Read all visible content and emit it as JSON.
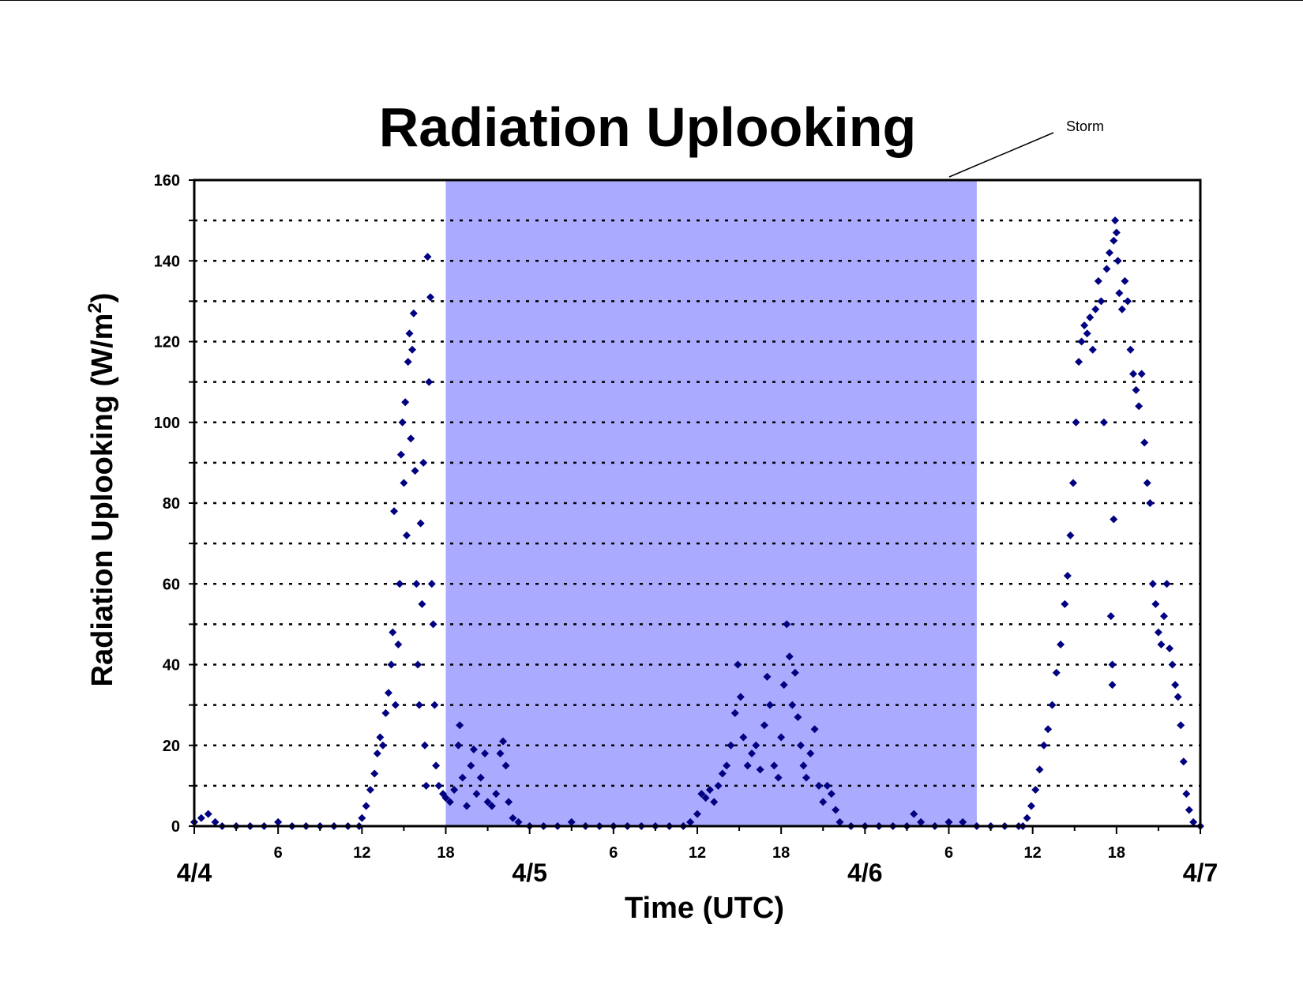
{
  "chart_data": {
    "type": "scatter",
    "title": "Radiation Uplooking",
    "xlabel": "Time (UTC)",
    "ylabel_main": "Radiation Uplooking (W/m",
    "ylabel_sup": "2",
    "ylabel_close": ")",
    "xlim": [
      0,
      72
    ],
    "ylim": [
      0,
      160
    ],
    "grid": "dotted horizontal lines every 10",
    "legend": "none",
    "marker_color": "#000080",
    "shade_color": "#AAAAFF",
    "yticks": [
      "0",
      "20",
      "40",
      "60",
      "80",
      "100",
      "120",
      "140",
      "160"
    ],
    "x_hour_ticks": [
      {
        "x": 6,
        "label": "6"
      },
      {
        "x": 12,
        "label": "12"
      },
      {
        "x": 18,
        "label": "18"
      },
      {
        "x": 30,
        "label": "6"
      },
      {
        "x": 36,
        "label": "12"
      },
      {
        "x": 42,
        "label": "18"
      },
      {
        "x": 54,
        "label": "6"
      },
      {
        "x": 60,
        "label": "12"
      },
      {
        "x": 66,
        "label": "18"
      }
    ],
    "x_day_labels": [
      {
        "x": 0,
        "label": "4/4"
      },
      {
        "x": 24,
        "label": "4/5"
      },
      {
        "x": 48,
        "label": "4/6"
      },
      {
        "x": 72,
        "label": "4/7"
      }
    ],
    "shaded_span": {
      "label": "Storm",
      "x_start": 18,
      "x_end": 56
    },
    "series": [
      {
        "values": [
          [
            0.0,
            1
          ],
          [
            0.5,
            2
          ],
          [
            1.0,
            3
          ],
          [
            1.5,
            1
          ],
          [
            2.0,
            0
          ],
          [
            3,
            0
          ],
          [
            4,
            0
          ],
          [
            5,
            0
          ],
          [
            6,
            1
          ],
          [
            7,
            0
          ],
          [
            8,
            0
          ],
          [
            9,
            0
          ],
          [
            10,
            0
          ],
          [
            11,
            0
          ],
          [
            11.8,
            0
          ],
          [
            12.0,
            2
          ],
          [
            12.3,
            5
          ],
          [
            12.6,
            9
          ],
          [
            12.9,
            13
          ],
          [
            13.1,
            18
          ],
          [
            13.3,
            22
          ],
          [
            13.5,
            20
          ],
          [
            13.7,
            28
          ],
          [
            13.9,
            33
          ],
          [
            14.1,
            40
          ],
          [
            14.2,
            48
          ],
          [
            14.3,
            78
          ],
          [
            14.4,
            30
          ],
          [
            14.6,
            45
          ],
          [
            14.7,
            60
          ],
          [
            14.8,
            92
          ],
          [
            14.9,
            100
          ],
          [
            15.0,
            85
          ],
          [
            15.1,
            105
          ],
          [
            15.2,
            72
          ],
          [
            15.3,
            115
          ],
          [
            15.4,
            122
          ],
          [
            15.5,
            96
          ],
          [
            15.6,
            118
          ],
          [
            15.7,
            127
          ],
          [
            15.8,
            88
          ],
          [
            15.9,
            60
          ],
          [
            16.0,
            40
          ],
          [
            16.1,
            30
          ],
          [
            16.2,
            75
          ],
          [
            16.3,
            55
          ],
          [
            16.4,
            90
          ],
          [
            16.5,
            20
          ],
          [
            16.6,
            10
          ],
          [
            16.7,
            141
          ],
          [
            16.8,
            110
          ],
          [
            16.9,
            131
          ],
          [
            17.0,
            60
          ],
          [
            17.1,
            50
          ],
          [
            17.2,
            30
          ],
          [
            17.3,
            15
          ],
          [
            17.5,
            10
          ],
          [
            17.8,
            8
          ],
          [
            18.0,
            7
          ],
          [
            18.3,
            6
          ],
          [
            18.6,
            9
          ],
          [
            18.9,
            20
          ],
          [
            19.0,
            25
          ],
          [
            19.2,
            12
          ],
          [
            19.5,
            5
          ],
          [
            19.8,
            15
          ],
          [
            20.0,
            19
          ],
          [
            20.2,
            8
          ],
          [
            20.5,
            12
          ],
          [
            20.8,
            18
          ],
          [
            21.0,
            6
          ],
          [
            21.3,
            5
          ],
          [
            21.6,
            8
          ],
          [
            21.9,
            18
          ],
          [
            22.1,
            21
          ],
          [
            22.3,
            15
          ],
          [
            22.5,
            6
          ],
          [
            22.8,
            2
          ],
          [
            23.2,
            1
          ],
          [
            24,
            0
          ],
          [
            25,
            0
          ],
          [
            26,
            0
          ],
          [
            27,
            1
          ],
          [
            28,
            0
          ],
          [
            29,
            0
          ],
          [
            30,
            0
          ],
          [
            31,
            0
          ],
          [
            32,
            0
          ],
          [
            33,
            0
          ],
          [
            34,
            0
          ],
          [
            35,
            0
          ],
          [
            35.5,
            1
          ],
          [
            36.0,
            3
          ],
          [
            36.3,
            8
          ],
          [
            36.6,
            7
          ],
          [
            36.9,
            9
          ],
          [
            37.2,
            6
          ],
          [
            37.5,
            10
          ],
          [
            37.8,
            13
          ],
          [
            38.1,
            15
          ],
          [
            38.4,
            20
          ],
          [
            38.7,
            28
          ],
          [
            38.9,
            40
          ],
          [
            39.1,
            32
          ],
          [
            39.3,
            22
          ],
          [
            39.6,
            15
          ],
          [
            39.9,
            18
          ],
          [
            40.2,
            20
          ],
          [
            40.5,
            14
          ],
          [
            40.8,
            25
          ],
          [
            41.0,
            37
          ],
          [
            41.2,
            30
          ],
          [
            41.5,
            15
          ],
          [
            41.8,
            12
          ],
          [
            42.0,
            22
          ],
          [
            42.2,
            35
          ],
          [
            42.4,
            50
          ],
          [
            42.6,
            42
          ],
          [
            42.8,
            30
          ],
          [
            43.0,
            38
          ],
          [
            43.2,
            27
          ],
          [
            43.4,
            20
          ],
          [
            43.6,
            15
          ],
          [
            43.8,
            12
          ],
          [
            44.1,
            18
          ],
          [
            44.4,
            24
          ],
          [
            44.7,
            10
          ],
          [
            45.0,
            6
          ],
          [
            45.3,
            10
          ],
          [
            45.6,
            8
          ],
          [
            45.9,
            4
          ],
          [
            46.2,
            1
          ],
          [
            47,
            0
          ],
          [
            48,
            0
          ],
          [
            49,
            0
          ],
          [
            50,
            0
          ],
          [
            51,
            0
          ],
          [
            51.5,
            3
          ],
          [
            52,
            1
          ],
          [
            53,
            0
          ],
          [
            54,
            1
          ],
          [
            55,
            1
          ],
          [
            56,
            0
          ],
          [
            57,
            0
          ],
          [
            58,
            0
          ],
          [
            59,
            0
          ],
          [
            59.3,
            0
          ],
          [
            59.6,
            2
          ],
          [
            59.9,
            5
          ],
          [
            60.2,
            9
          ],
          [
            60.5,
            14
          ],
          [
            60.8,
            20
          ],
          [
            61.1,
            24
          ],
          [
            61.4,
            30
          ],
          [
            61.7,
            38
          ],
          [
            62.0,
            45
          ],
          [
            62.3,
            55
          ],
          [
            62.5,
            62
          ],
          [
            62.7,
            72
          ],
          [
            62.9,
            85
          ],
          [
            63.1,
            100
          ],
          [
            63.3,
            115
          ],
          [
            63.5,
            120
          ],
          [
            63.7,
            124
          ],
          [
            63.9,
            122
          ],
          [
            64.1,
            126
          ],
          [
            64.3,
            118
          ],
          [
            64.5,
            128
          ],
          [
            64.7,
            135
          ],
          [
            64.9,
            130
          ],
          [
            65.1,
            100
          ],
          [
            65.3,
            138
          ],
          [
            65.5,
            142
          ],
          [
            65.6,
            52
          ],
          [
            65.7,
            40
          ],
          [
            65.7,
            35
          ],
          [
            65.8,
            145
          ],
          [
            65.8,
            76
          ],
          [
            65.9,
            150
          ],
          [
            66.0,
            147
          ],
          [
            66.1,
            140
          ],
          [
            66.2,
            132
          ],
          [
            66.4,
            128
          ],
          [
            66.6,
            135
          ],
          [
            66.8,
            130
          ],
          [
            67.0,
            118
          ],
          [
            67.2,
            112
          ],
          [
            67.4,
            108
          ],
          [
            67.6,
            104
          ],
          [
            67.8,
            112
          ],
          [
            68.0,
            95
          ],
          [
            68.2,
            85
          ],
          [
            68.4,
            80
          ],
          [
            68.6,
            60
          ],
          [
            68.8,
            55
          ],
          [
            69.0,
            48
          ],
          [
            69.2,
            45
          ],
          [
            69.4,
            52
          ],
          [
            69.6,
            60
          ],
          [
            69.8,
            44
          ],
          [
            70.0,
            40
          ],
          [
            70.2,
            35
          ],
          [
            70.4,
            32
          ],
          [
            70.6,
            25
          ],
          [
            70.8,
            16
          ],
          [
            71.0,
            8
          ],
          [
            71.2,
            4
          ],
          [
            71.5,
            1
          ],
          [
            72.0,
            0
          ]
        ]
      }
    ]
  }
}
